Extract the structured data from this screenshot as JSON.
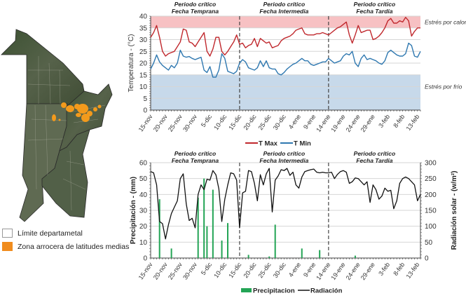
{
  "map": {
    "legend": [
      {
        "label": "Límite departametal",
        "color": "#ffffff",
        "border": "#999999"
      },
      {
        "label": "Zona arrocera de latitudes medias",
        "color": "#f08c1e",
        "border": "#f08c1e"
      }
    ]
  },
  "colors": {
    "tmax": "#c0282d",
    "tmin": "#2f78b0",
    "heat_band": "#f7c1c3",
    "cold_band": "#c7d9ea",
    "precip": "#23a455",
    "rad": "#111111"
  },
  "chart_data": [
    {
      "type": "line",
      "title": "",
      "ylabel": "Temperatura - (°C)",
      "ylim": [
        0,
        40
      ],
      "yticks": [
        0,
        5,
        10,
        15,
        20,
        25,
        30,
        35,
        40
      ],
      "grid": true,
      "x_start": "15-nov",
      "n_days": 92,
      "xtick_labels": [
        "15-nov",
        "20-nov",
        "25-nov",
        "30-nov",
        "5-dic",
        "10-dic",
        "15-dic",
        "20-dic",
        "25-dic",
        "30-dic",
        "4-ene",
        "9-ene",
        "14-ene",
        "19-ene",
        "24-ene",
        "29-ene",
        "3-feb",
        "8-feb",
        "13-feb"
      ],
      "xtick_every_days": 5,
      "bands": [
        {
          "label": "Estrés por calor",
          "from": 35,
          "to": 40
        },
        {
          "label": "Estrés por frío",
          "from": 0,
          "to": 15
        }
      ],
      "periods": [
        {
          "line1": "Periodo crítico",
          "line2": "Fecha Temprana"
        },
        {
          "line1": "Periodo crítico",
          "line2": "Fecha Intermedia"
        },
        {
          "line1": "Periodo crítico",
          "line2": "Fecha Tardía"
        }
      ],
      "period_dividers": [
        "15-dic",
        "14-ene"
      ],
      "legend": "bottom-right",
      "series": [
        {
          "name": "T Max",
          "values": [
            31,
            33,
            36,
            31,
            25,
            23,
            24,
            24.5,
            25,
            27,
            29,
            34.5,
            34,
            29,
            28.5,
            27,
            29,
            31,
            33,
            25,
            23,
            26,
            31,
            31,
            25,
            23.5,
            25,
            27,
            29,
            32,
            28,
            28.5,
            26.5,
            27.5,
            28,
            30.5,
            27,
            30.5,
            29.5,
            28.5,
            29,
            26.5,
            27,
            27.5,
            29.5,
            30.5,
            31,
            31.5,
            32.5,
            34,
            34.5,
            35,
            32.5,
            32,
            32,
            32,
            32.5,
            32.5,
            33,
            32.5,
            32,
            33,
            34,
            35,
            35.5,
            36.5,
            37.5,
            32,
            28.5,
            32,
            36,
            33,
            33.5,
            34,
            34,
            30,
            30.5,
            31.5,
            33,
            35,
            38,
            39,
            37,
            37,
            38,
            37.5,
            39.5,
            38,
            31.5,
            33.5,
            35,
            35
          ]
        },
        {
          "name": "T Min",
          "values": [
            17.5,
            20,
            23.5,
            20.5,
            19,
            18,
            17,
            19,
            18,
            20,
            25.5,
            23,
            22.5,
            22.8,
            22,
            21.5,
            22,
            22.5,
            17,
            16,
            18.5,
            14,
            14,
            17,
            24,
            22,
            16.5,
            16,
            15.5,
            16.5,
            20,
            21.5,
            20.5,
            18,
            17.5,
            17,
            18,
            21,
            18.5,
            21,
            18,
            17.5,
            17.5,
            15.5,
            15,
            16,
            17.5,
            18.5,
            19.5,
            20,
            21,
            22,
            21,
            21,
            19.5,
            19,
            19.5,
            20,
            20.5,
            20.5,
            22,
            21,
            20,
            20.5,
            21,
            23,
            24,
            23.5,
            25,
            20,
            18.5,
            22,
            23.5,
            21.5,
            22,
            21.5,
            21,
            20,
            19.5,
            21,
            24.5,
            25.5,
            24.5,
            23.5,
            23,
            23,
            24,
            28.5,
            27.5,
            23,
            22.5,
            25
          ]
        }
      ]
    },
    {
      "type": "bar+line",
      "title": "",
      "ylabel": "Precipitación - (mm)",
      "ylim": [
        0,
        60
      ],
      "yticks": [
        0,
        10,
        20,
        30,
        40,
        50,
        60
      ],
      "y2label": "Radiación solar - (w/m²)",
      "y2lim": [
        0,
        300
      ],
      "y2ticks": [
        0,
        50,
        100,
        150,
        200,
        250,
        300
      ],
      "grid": true,
      "x_start": "15-nov",
      "n_days": 92,
      "xtick_labels": [
        "15-nov",
        "20-nov",
        "25-nov",
        "30-nov",
        "5-dic",
        "10-dic",
        "15-dic",
        "20-dic",
        "25-dic",
        "30-dic",
        "4-ene",
        "9-ene",
        "14-ene",
        "19-ene",
        "24-ene",
        "29-ene",
        "3-feb",
        "8-feb",
        "13-feb"
      ],
      "xtick_every_days": 5,
      "periods": [
        {
          "line1": "Periodo crítico",
          "line2": "Fecha Temprana"
        },
        {
          "line1": "Periodo crítico",
          "line2": "Fecha Intermedia"
        },
        {
          "line1": "Periodo crítico",
          "line2": "Fecha Tardía"
        }
      ],
      "period_dividers": [
        "15-dic",
        "14-ene"
      ],
      "legend": "bottom-right",
      "series": [
        {
          "name": "Precipitacion",
          "kind": "bar",
          "axis": "left",
          "values": [
            0,
            0,
            0,
            37,
            0,
            0,
            0,
            6,
            0,
            0,
            0,
            0,
            0,
            0,
            0,
            0,
            38,
            0,
            50,
            20,
            0,
            43,
            0,
            0,
            11,
            0,
            22,
            0,
            0,
            0,
            0,
            0,
            0,
            2,
            0,
            0,
            0,
            0,
            0,
            0,
            1,
            0,
            21,
            0,
            0,
            0,
            0,
            0,
            0,
            0,
            0,
            6,
            0,
            0,
            0,
            0,
            0,
            5,
            0,
            0,
            0,
            0,
            0,
            0,
            0,
            0,
            0,
            0,
            0,
            1.5,
            0,
            0,
            0,
            0,
            0,
            0,
            0,
            0,
            0,
            0,
            0,
            0,
            0,
            0,
            0,
            0,
            0,
            0,
            0,
            0,
            0,
            0
          ]
        },
        {
          "name": "Radiación",
          "kind": "line",
          "axis": "right",
          "values": [
            272,
            268,
            230,
            115,
            108,
            60,
            105,
            140,
            160,
            180,
            250,
            265,
            170,
            118,
            125,
            95,
            200,
            230,
            215,
            248,
            245,
            275,
            262,
            218,
            115,
            185,
            230,
            268,
            265,
            245,
            95,
            205,
            210,
            275,
            272,
            235,
            180,
            262,
            230,
            265,
            282,
            145,
            245,
            258,
            278,
            275,
            282,
            260,
            270,
            230,
            220,
            255,
            272,
            275,
            278,
            280,
            270,
            268,
            270,
            268,
            268,
            270,
            250,
            263,
            272,
            275,
            270,
            235,
            240,
            252,
            250,
            240,
            230,
            240,
            175,
            230,
            215,
            185,
            195,
            220,
            210,
            213,
            155,
            180,
            235,
            250,
            255,
            250,
            240,
            230,
            180,
            200
          ]
        }
      ]
    }
  ],
  "labels": {
    "heat_stress": "Estrés por calor",
    "cold_stress": "Estrés por frío"
  }
}
